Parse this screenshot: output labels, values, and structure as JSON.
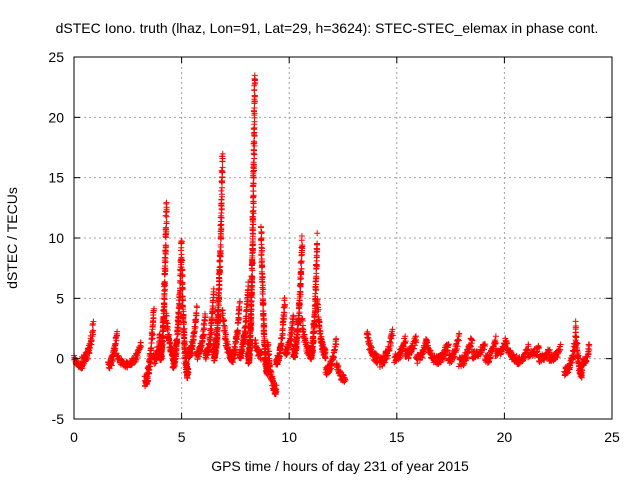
{
  "chart_data": {
    "type": "scatter",
    "title": "dSTEC Iono. truth (lhaz, Lon=91, Lat=29, h=3624): STEC-STEC_elemax in phase cont.",
    "xlabel": "GPS time / hours of day 231 of year 2015",
    "ylabel": "dSTEC  / TECUs",
    "xlim": [
      0,
      25
    ],
    "ylim": [
      -5,
      25
    ],
    "x_ticks": [
      "0",
      "5",
      "10",
      "15",
      "20",
      "25"
    ],
    "y_ticks": [
      "-5",
      "0",
      "5",
      "10",
      "15",
      "20",
      "25"
    ],
    "grid": true,
    "marker": "+",
    "colors": {
      "series": "#ff0000",
      "grid": "#a0a0a0",
      "axes": "#000000"
    },
    "series": [
      {
        "arcs": [
          [
            0.0,
            0.35,
            0.0,
            -0.6,
            0.5
          ],
          [
            0.35,
            0.9,
            -0.3,
            2.6,
            1.0
          ],
          [
            1.6,
            2.0,
            -0.5,
            2.2,
            0.7
          ],
          [
            2.0,
            2.5,
            0.2,
            -0.5,
            0.5
          ],
          [
            2.6,
            3.1,
            -0.3,
            1.2,
            0.6
          ],
          [
            3.3,
            3.7,
            -1.8,
            4.0,
            1.0
          ],
          [
            3.7,
            4.0,
            0.0,
            2.0,
            1.0
          ],
          [
            4.0,
            4.3,
            0.2,
            12.8,
            1.0
          ],
          [
            4.3,
            4.6,
            3.5,
            0.5,
            0.8
          ],
          [
            4.6,
            5.0,
            -0.3,
            9.8,
            1.0
          ],
          [
            5.0,
            5.3,
            8.2,
            -1.2,
            0.9
          ],
          [
            5.3,
            5.7,
            0.4,
            4.0,
            0.8
          ],
          [
            5.7,
            6.1,
            0.3,
            3.5,
            0.8
          ],
          [
            6.1,
            6.5,
            0.3,
            5.5,
            0.8
          ],
          [
            6.5,
            6.9,
            0.3,
            16.9,
            1.0
          ],
          [
            6.9,
            7.3,
            3.9,
            0.3,
            0.8
          ],
          [
            7.3,
            7.7,
            0.0,
            4.5,
            0.8
          ],
          [
            7.7,
            8.1,
            0.4,
            6.2,
            0.8
          ],
          [
            8.1,
            8.4,
            0.0,
            23.5,
            1.0
          ],
          [
            8.4,
            8.7,
            1.5,
            0.2,
            0.8
          ],
          [
            8.7,
            9.0,
            10.8,
            -1.0,
            0.8
          ],
          [
            9.0,
            9.4,
            1.2,
            -2.6,
            0.8
          ],
          [
            9.4,
            9.8,
            -0.2,
            5.0,
            0.8
          ],
          [
            9.8,
            10.2,
            0.6,
            3.5,
            0.8
          ],
          [
            10.2,
            10.6,
            0.4,
            9.9,
            1.0
          ],
          [
            10.6,
            11.0,
            3.0,
            0.4,
            0.8
          ],
          [
            11.0,
            11.3,
            0.4,
            9.9,
            1.0
          ],
          [
            11.3,
            11.7,
            4.9,
            0.4,
            0.8
          ],
          [
            11.7,
            12.2,
            -1.0,
            1.5,
            0.7
          ],
          [
            12.2,
            12.6,
            -0.3,
            -1.7,
            0.6
          ],
          [
            13.6,
            14.1,
            2.3,
            0.0,
            0.8
          ],
          [
            14.2,
            14.8,
            -0.3,
            2.1,
            0.8
          ],
          [
            14.9,
            15.4,
            0.0,
            1.8,
            0.8
          ],
          [
            15.4,
            15.9,
            0.3,
            1.7,
            0.8
          ],
          [
            15.9,
            16.4,
            0.0,
            1.6,
            0.8
          ],
          [
            16.4,
            16.9,
            1.2,
            -0.1,
            0.7
          ],
          [
            16.9,
            17.4,
            -0.1,
            1.4,
            0.7
          ],
          [
            17.4,
            17.9,
            0.0,
            1.7,
            0.8
          ],
          [
            17.9,
            18.5,
            -0.3,
            1.6,
            0.8
          ],
          [
            18.5,
            19.1,
            0.3,
            1.2,
            0.6
          ],
          [
            19.1,
            19.6,
            -0.1,
            1.6,
            0.7
          ],
          [
            19.6,
            20.1,
            0.4,
            1.6,
            0.7
          ],
          [
            20.1,
            20.6,
            1.1,
            0.0,
            0.6
          ],
          [
            20.6,
            21.1,
            -0.2,
            1.0,
            0.6
          ],
          [
            21.1,
            21.6,
            0.4,
            0.8,
            0.6
          ],
          [
            21.6,
            22.1,
            0.0,
            0.8,
            0.6
          ],
          [
            22.1,
            22.6,
            0.0,
            0.9,
            0.6
          ],
          [
            22.8,
            23.3,
            -1.0,
            1.5,
            0.8
          ],
          [
            23.3,
            23.6,
            2.8,
            -1.2,
            0.8
          ],
          [
            23.6,
            23.95,
            -0.4,
            1.0,
            0.7
          ]
        ]
      }
    ]
  }
}
